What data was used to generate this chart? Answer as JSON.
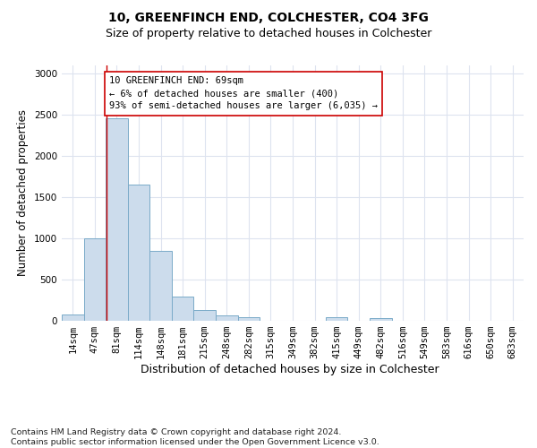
{
  "title1": "10, GREENFINCH END, COLCHESTER, CO4 3FG",
  "title2": "Size of property relative to detached houses in Colchester",
  "xlabel": "Distribution of detached houses by size in Colchester",
  "ylabel": "Number of detached properties",
  "categories": [
    "14sqm",
    "47sqm",
    "81sqm",
    "114sqm",
    "148sqm",
    "181sqm",
    "215sqm",
    "248sqm",
    "282sqm",
    "315sqm",
    "349sqm",
    "382sqm",
    "415sqm",
    "449sqm",
    "482sqm",
    "516sqm",
    "549sqm",
    "583sqm",
    "616sqm",
    "650sqm",
    "683sqm"
  ],
  "values": [
    70,
    1000,
    2450,
    1650,
    840,
    290,
    120,
    55,
    40,
    0,
    0,
    0,
    40,
    0,
    25,
    0,
    0,
    0,
    0,
    0,
    0
  ],
  "bar_color": "#ccdcec",
  "bar_edge_color": "#7aaac8",
  "grid_color": "#dde3ef",
  "vline_x": 1.55,
  "vline_color": "#cc0000",
  "annotation_text": "10 GREENFINCH END: 69sqm\n← 6% of detached houses are smaller (400)\n93% of semi-detached houses are larger (6,035) →",
  "annotation_box_color": "#ffffff",
  "annotation_box_edge": "#cc0000",
  "ylim": [
    0,
    3100
  ],
  "footnote": "Contains HM Land Registry data © Crown copyright and database right 2024.\nContains public sector information licensed under the Open Government Licence v3.0.",
  "title1_fontsize": 10,
  "title2_fontsize": 9,
  "xlabel_fontsize": 9,
  "ylabel_fontsize": 8.5,
  "tick_fontsize": 7.5,
  "annotation_fontsize": 7.5,
  "footnote_fontsize": 6.8
}
